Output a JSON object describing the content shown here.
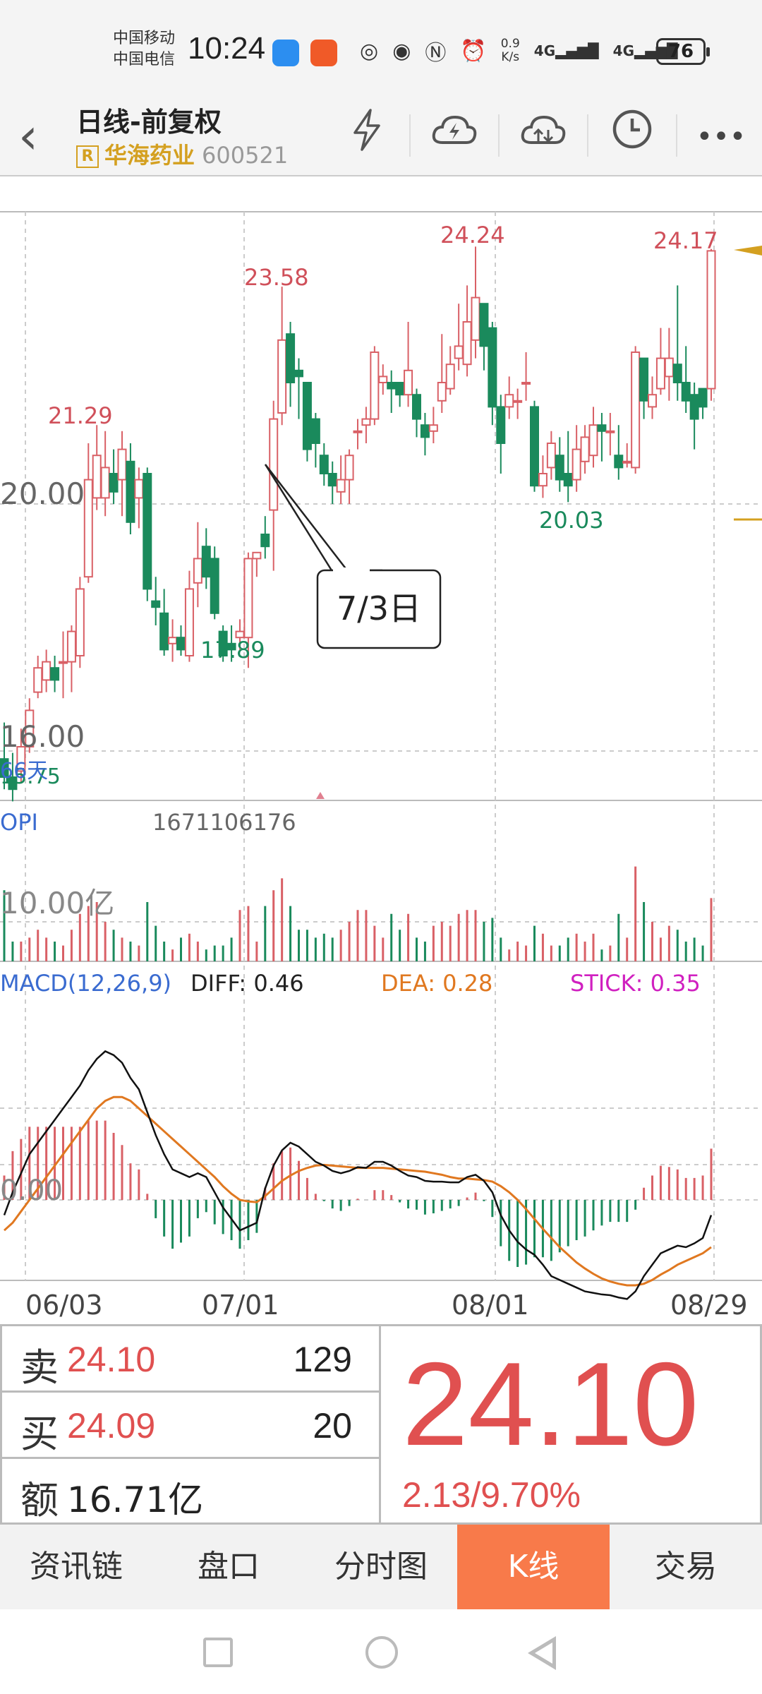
{
  "status_bar": {
    "carrier1": "中国移动",
    "carrier2": "中国电信",
    "time": "10:24",
    "speed_value": "0.9",
    "speed_unit": "K/s",
    "net1": "4G",
    "net2": "4G",
    "battery": "76"
  },
  "header": {
    "title": "日线-前复权",
    "badge": "R",
    "stock_name": "华海药业",
    "stock_code": "600521"
  },
  "chart": {
    "price_labels": {
      "high1": "21.29",
      "high2": "23.58",
      "high3": "24.24",
      "high4": "24.17",
      "low1": "17.89",
      "low2": "20.03"
    },
    "axis_20": "20.00",
    "axis_16": "16.00",
    "ma_label": "66天",
    "ma_value": "15.75",
    "callout": "7/3日",
    "volume_title": "OPI",
    "volume_value": "1671106176",
    "volume_axis": "10.00亿",
    "macd_title": "MACD(12,26,9)",
    "diff": "DIFF: 0.46",
    "dea": "DEA: 0.28",
    "stick": "STICK: 0.35",
    "macd_zero": "0.00",
    "dates": [
      "06/03",
      "07/01",
      "08/01",
      "08/29"
    ]
  },
  "chart_data": {
    "type": "candlestick",
    "up_color": "#d96066",
    "down_color": "#1a8a5c",
    "candles": [
      [
        15.8,
        15.5,
        16.4,
        15.3
      ],
      [
        15.5,
        15.3,
        15.9,
        15.1
      ],
      [
        15.6,
        16.0,
        16.3,
        15.4
      ],
      [
        16.0,
        16.6,
        16.8,
        15.9
      ],
      [
        16.9,
        17.3,
        17.5,
        16.8
      ],
      [
        17.1,
        17.4,
        17.6,
        16.9
      ],
      [
        17.3,
        17.1,
        17.5,
        16.9
      ],
      [
        17.4,
        17.4,
        17.9,
        16.8
      ],
      [
        17.4,
        17.9,
        18.0,
        16.9
      ],
      [
        17.5,
        18.6,
        18.8,
        17.3
      ],
      [
        18.8,
        20.4,
        21.0,
        18.7
      ],
      [
        20.1,
        20.8,
        21.3,
        19.9
      ],
      [
        20.1,
        20.6,
        21.2,
        19.8
      ],
      [
        20.5,
        20.2,
        20.9,
        20.0
      ],
      [
        20.4,
        20.9,
        21.2,
        19.8
      ],
      [
        20.7,
        19.7,
        21.0,
        19.5
      ],
      [
        20.1,
        20.4,
        20.6,
        19.6
      ],
      [
        20.5,
        18.6,
        20.6,
        18.4
      ],
      [
        18.4,
        18.3,
        18.8,
        18.0
      ],
      [
        18.2,
        17.6,
        18.6,
        17.5
      ],
      [
        17.7,
        17.8,
        18.1,
        17.4
      ],
      [
        17.8,
        17.6,
        18.0,
        17.5
      ],
      [
        17.5,
        18.6,
        18.9,
        17.4
      ],
      [
        18.7,
        19.1,
        19.7,
        18.3
      ],
      [
        19.3,
        18.8,
        19.6,
        18.6
      ],
      [
        19.1,
        18.2,
        19.3,
        18.1
      ],
      [
        17.9,
        17.5,
        18.0,
        17.4
      ],
      [
        17.7,
        17.6,
        18.0,
        17.4
      ],
      [
        17.8,
        17.9,
        18.1,
        17.6
      ],
      [
        17.8,
        19.1,
        19.2,
        17.3
      ],
      [
        19.1,
        19.2,
        19.1,
        18.8
      ],
      [
        19.5,
        19.3,
        19.8,
        19.1
      ],
      [
        19.9,
        21.4,
        21.7,
        18.9
      ],
      [
        21.5,
        22.7,
        23.58,
        21.3
      ],
      [
        22.8,
        22.0,
        23.0,
        21.6
      ],
      [
        22.2,
        22.1,
        22.4,
        21.4
      ],
      [
        22.0,
        20.9,
        22.0,
        20.7
      ],
      [
        21.4,
        21.0,
        21.5,
        20.6
      ],
      [
        20.8,
        20.5,
        21.0,
        20.3
      ],
      [
        20.5,
        20.3,
        20.7,
        20.0
      ],
      [
        20.2,
        20.4,
        20.8,
        20.0
      ],
      [
        20.4,
        20.8,
        20.9,
        20.0
      ],
      [
        21.2,
        21.2,
        21.4,
        20.9
      ],
      [
        21.3,
        21.4,
        21.6,
        21.0
      ],
      [
        21.4,
        22.5,
        22.6,
        21.3
      ],
      [
        22.0,
        22.1,
        22.3,
        21.8
      ],
      [
        22.0,
        21.9,
        22.2,
        21.5
      ],
      [
        22.0,
        21.8,
        22.0,
        21.6
      ],
      [
        21.8,
        22.2,
        23.0,
        21.6
      ],
      [
        21.8,
        21.4,
        21.9,
        21.1
      ],
      [
        21.3,
        21.1,
        21.5,
        20.8
      ],
      [
        21.2,
        21.3,
        21.6,
        21.0
      ],
      [
        21.7,
        22.0,
        22.8,
        21.5
      ],
      [
        21.9,
        22.3,
        22.6,
        21.8
      ],
      [
        22.4,
        22.6,
        23.3,
        22.2
      ],
      [
        22.3,
        23.0,
        23.6,
        22.1
      ],
      [
        22.7,
        23.4,
        24.24,
        22.4
      ],
      [
        23.3,
        22.6,
        23.3,
        22.2
      ],
      [
        22.9,
        21.6,
        23.0,
        21.3
      ],
      [
        21.6,
        21.0,
        21.8,
        20.5
      ],
      [
        21.6,
        21.8,
        22.1,
        21.4
      ],
      [
        21.7,
        21.7,
        21.9,
        21.4
      ],
      [
        22.0,
        22.0,
        22.5,
        21.7
      ],
      [
        21.6,
        20.3,
        21.7,
        20.2
      ],
      [
        20.3,
        20.5,
        20.8,
        20.1
      ],
      [
        20.6,
        21.0,
        21.2,
        20.4
      ],
      [
        20.8,
        20.4,
        21.1,
        20.2
      ],
      [
        20.5,
        20.3,
        21.2,
        20.03
      ],
      [
        20.4,
        20.9,
        21.3,
        20.2
      ],
      [
        20.7,
        21.1,
        21.3,
        20.5
      ],
      [
        20.8,
        21.3,
        21.6,
        20.6
      ],
      [
        21.3,
        21.2,
        21.5,
        20.7
      ],
      [
        21.2,
        21.2,
        21.5,
        20.8
      ],
      [
        20.8,
        20.6,
        21.3,
        20.4
      ],
      [
        20.7,
        20.7,
        21.0,
        20.6
      ],
      [
        20.6,
        22.5,
        22.6,
        20.5
      ],
      [
        22.4,
        21.7,
        22.4,
        21.4
      ],
      [
        21.6,
        21.8,
        22.1,
        21.4
      ],
      [
        21.9,
        22.4,
        22.9,
        21.8
      ],
      [
        22.1,
        22.4,
        22.9,
        21.7
      ],
      [
        22.3,
        22.0,
        23.6,
        21.7
      ],
      [
        22.0,
        21.7,
        22.6,
        21.5
      ],
      [
        21.8,
        21.4,
        22.0,
        20.9
      ],
      [
        21.9,
        21.6,
        21.9,
        21.4
      ],
      [
        21.9,
        24.17,
        24.2,
        21.7
      ]
    ],
    "volumes": [
      1.8,
      0.5,
      0.5,
      0.6,
      0.8,
      0.6,
      0.5,
      0.4,
      0.8,
      1.2,
      1.4,
      1.5,
      1.0,
      0.8,
      0.6,
      0.5,
      0.4,
      1.5,
      0.9,
      0.5,
      0.3,
      0.6,
      0.7,
      0.5,
      0.3,
      0.4,
      0.4,
      0.6,
      1.3,
      1.4,
      0.5,
      1.4,
      1.8,
      2.1,
      1.4,
      0.8,
      0.8,
      0.6,
      0.7,
      0.6,
      0.8,
      1.0,
      1.3,
      1.3,
      0.9,
      0.6,
      1.2,
      0.8,
      1.2,
      0.6,
      0.5,
      0.9,
      1.0,
      0.9,
      1.2,
      1.3,
      1.3,
      1.0,
      1.1,
      0.6,
      0.3,
      0.5,
      0.4,
      0.9,
      0.7,
      0.4,
      0.4,
      0.6,
      0.7,
      0.5,
      0.7,
      0.3,
      0.4,
      1.2,
      0.6,
      2.4,
      1.5,
      1.0,
      0.6,
      0.9,
      0.8,
      0.5,
      0.6,
      0.4,
      1.6
    ],
    "macd": {
      "diff": [
        -0.2,
        0.1,
        0.35,
        0.6,
        0.75,
        0.9,
        1.05,
        1.2,
        1.35,
        1.5,
        1.7,
        1.85,
        1.95,
        1.9,
        1.8,
        1.6,
        1.45,
        1.15,
        0.85,
        0.6,
        0.4,
        0.35,
        0.3,
        0.35,
        0.3,
        0.1,
        -0.1,
        -0.25,
        -0.4,
        -0.35,
        -0.3,
        0.15,
        0.45,
        0.65,
        0.75,
        0.7,
        0.6,
        0.5,
        0.45,
        0.38,
        0.35,
        0.38,
        0.43,
        0.42,
        0.5,
        0.5,
        0.45,
        0.38,
        0.32,
        0.3,
        0.25,
        0.24,
        0.24,
        0.23,
        0.23,
        0.3,
        0.33,
        0.25,
        0.1,
        -0.2,
        -0.4,
        -0.55,
        -0.65,
        -0.72,
        -0.85,
        -1.0,
        -1.05,
        -1.1,
        -1.15,
        -1.2,
        -1.22,
        -1.24,
        -1.25,
        -1.28,
        -1.3,
        -1.2,
        -1.0,
        -0.85,
        -0.7,
        -0.65,
        -0.6,
        -0.62,
        -0.57,
        -0.5,
        -0.2
      ],
      "dea": [
        -0.4,
        -0.3,
        -0.15,
        0.0,
        0.15,
        0.3,
        0.45,
        0.6,
        0.75,
        0.9,
        1.05,
        1.2,
        1.3,
        1.35,
        1.35,
        1.3,
        1.2,
        1.1,
        1.0,
        0.9,
        0.8,
        0.7,
        0.6,
        0.5,
        0.4,
        0.3,
        0.18,
        0.08,
        0.0,
        -0.02,
        -0.03,
        0.05,
        0.15,
        0.25,
        0.32,
        0.38,
        0.42,
        0.45,
        0.46,
        0.45,
        0.44,
        0.43,
        0.42,
        0.42,
        0.42,
        0.42,
        0.41,
        0.4,
        0.39,
        0.38,
        0.37,
        0.35,
        0.33,
        0.3,
        0.28,
        0.28,
        0.27,
        0.26,
        0.24,
        0.18,
        0.1,
        0.0,
        -0.12,
        -0.25,
        -0.38,
        -0.5,
        -0.62,
        -0.72,
        -0.82,
        -0.9,
        -0.97,
        -1.03,
        -1.07,
        -1.1,
        -1.12,
        -1.12,
        -1.1,
        -1.05,
        -0.98,
        -0.92,
        -0.85,
        -0.8,
        -0.75,
        -0.7,
        -0.62
      ]
    }
  },
  "quote": {
    "sell_label": "卖",
    "sell_price": "24.10",
    "sell_vol": "129",
    "buy_label": "买",
    "buy_price": "24.09",
    "buy_vol": "20",
    "amount_label": "额",
    "amount": "16.71亿",
    "price": "24.10",
    "change": "2.13/9.70%"
  },
  "tabs": [
    "资讯链",
    "盘口",
    "分时图",
    "K线",
    "交易"
  ]
}
